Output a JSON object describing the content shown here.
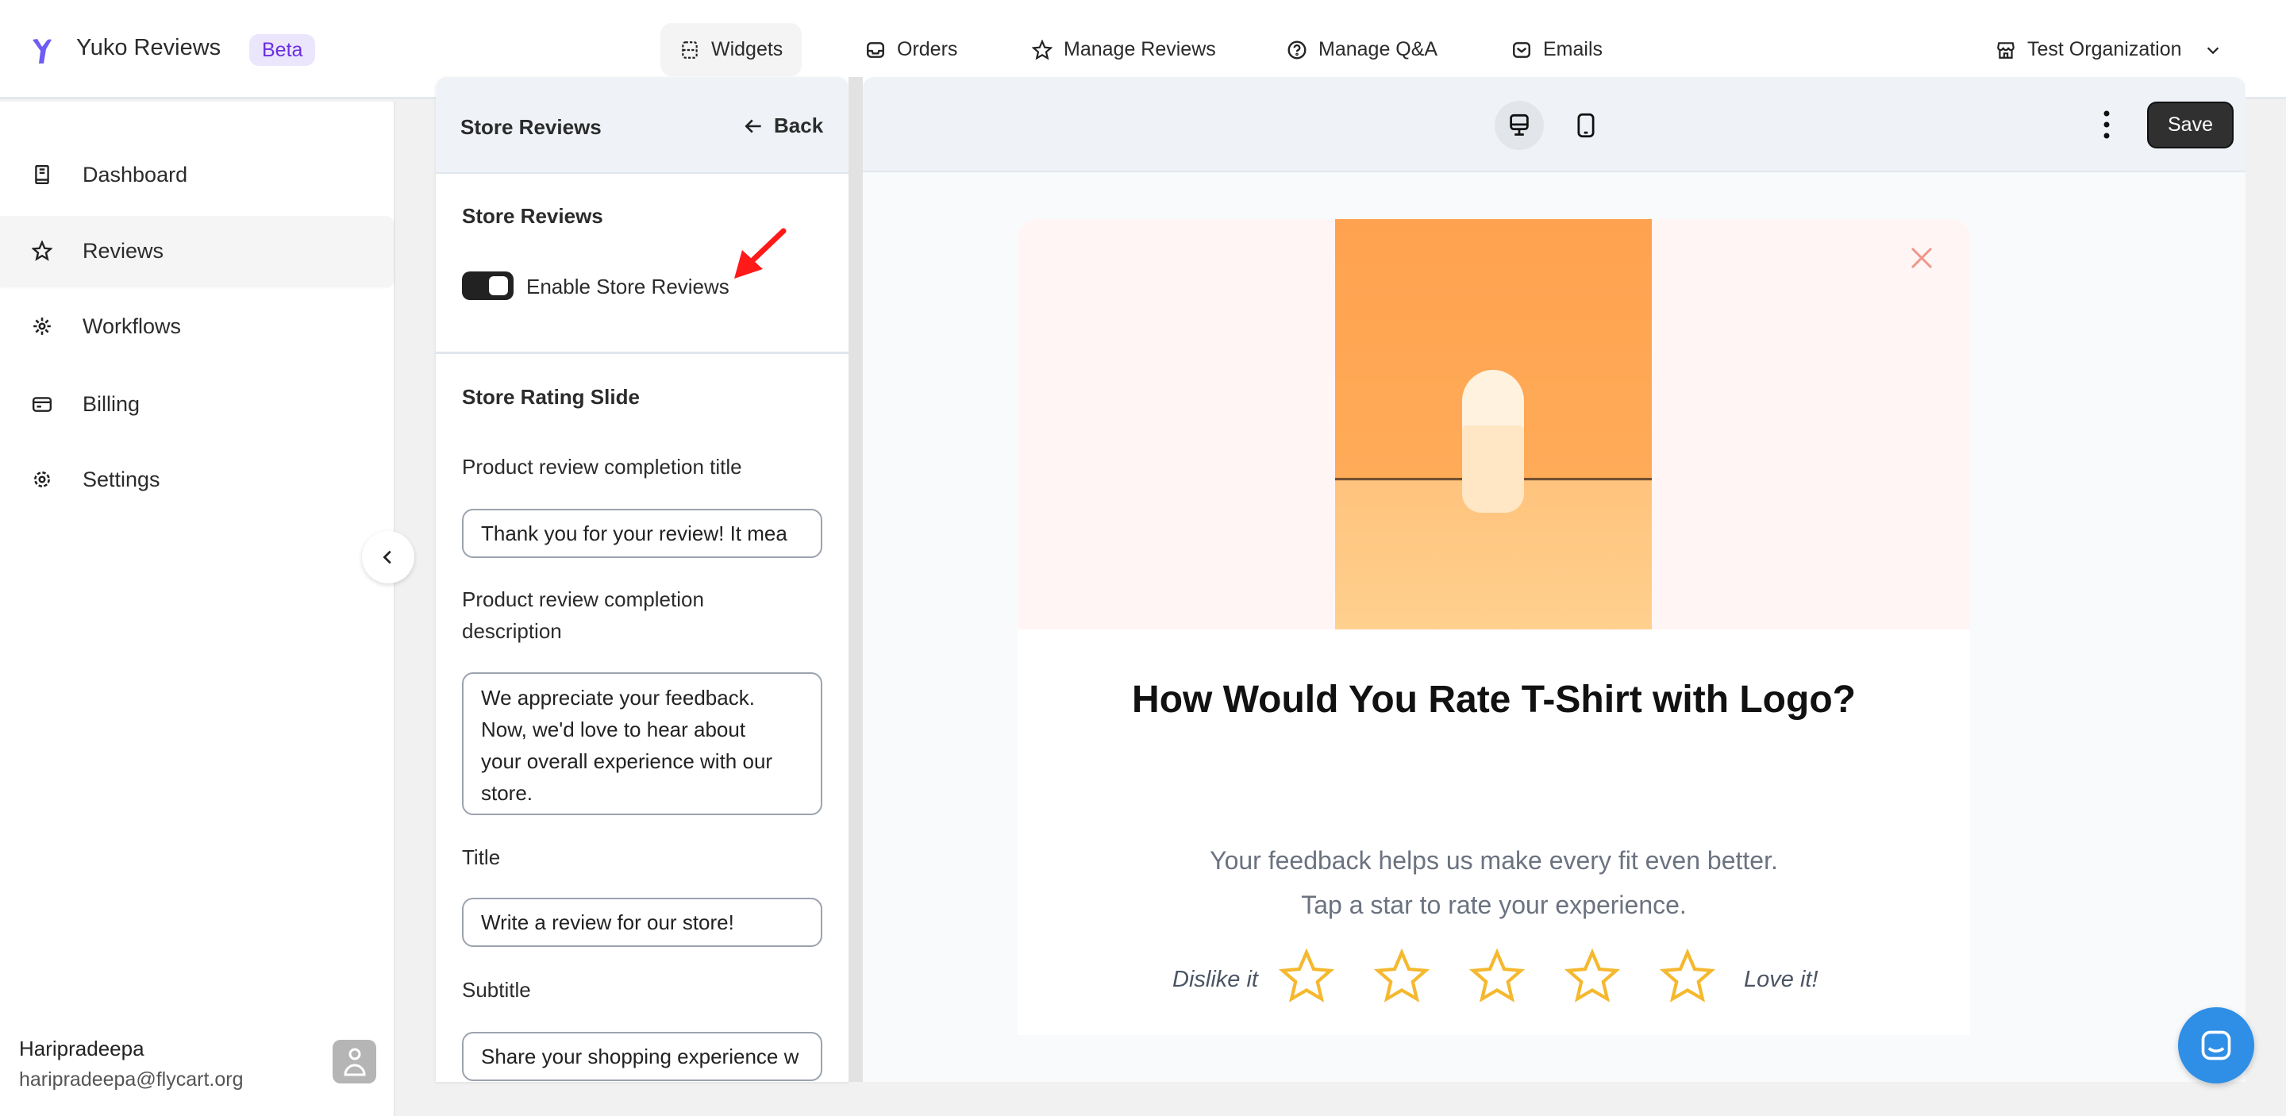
{
  "app": {
    "title": "Yuko Reviews",
    "badge": "Beta",
    "brand_color": "#6d5df5"
  },
  "nav": [
    {
      "label": "Widgets",
      "icon": "widgets-icon",
      "active": true
    },
    {
      "label": "Orders",
      "icon": "inbox-icon"
    },
    {
      "label": "Manage Reviews",
      "icon": "star-icon"
    },
    {
      "label": "Manage Q&A",
      "icon": "question-icon"
    },
    {
      "label": "Emails",
      "icon": "mail-icon"
    }
  ],
  "org": {
    "label": "Test Organization",
    "icon": "store-icon"
  },
  "sidebar": {
    "items": [
      {
        "label": "Dashboard",
        "icon": "book-icon"
      },
      {
        "label": "Reviews",
        "icon": "star-icon",
        "active": true
      },
      {
        "label": "Workflows",
        "icon": "gear-icon"
      },
      {
        "label": "Billing",
        "icon": "billing-icon"
      },
      {
        "label": "Settings",
        "icon": "settings-icon"
      }
    ]
  },
  "user": {
    "name": "Haripradeepa",
    "email": "haripradeepa@flycart.org"
  },
  "panel": {
    "title": "Store Reviews",
    "back": "Back",
    "section1": {
      "title": "Store Reviews",
      "toggle_label": "Enable Store Reviews",
      "enabled": true
    },
    "section2": {
      "title": "Store Rating Slide",
      "completion_title_label": "Product review completion title",
      "completion_title_value": "Thank you for your review! It mea",
      "completion_desc_label_1": "Product review completion",
      "completion_desc_label_2": "description",
      "completion_desc_lines": [
        "We appreciate your feedback.",
        "Now, we'd love to hear about",
        "your overall experience with our",
        "store."
      ],
      "title_label": "Title",
      "title_value": "Write a review for our store!",
      "subtitle_label": "Subtitle",
      "subtitle_value": "Share your shopping experience w"
    }
  },
  "preview": {
    "save": "Save",
    "heading": "How Would You Rate T-Shirt with Logo?",
    "sub1": "Your feedback helps us make every fit even better.",
    "sub2": "Tap a star to rate your experience.",
    "dislike": "Dislike it",
    "love": "Love it!",
    "stars": 5,
    "star_color": "#f5b82e"
  }
}
